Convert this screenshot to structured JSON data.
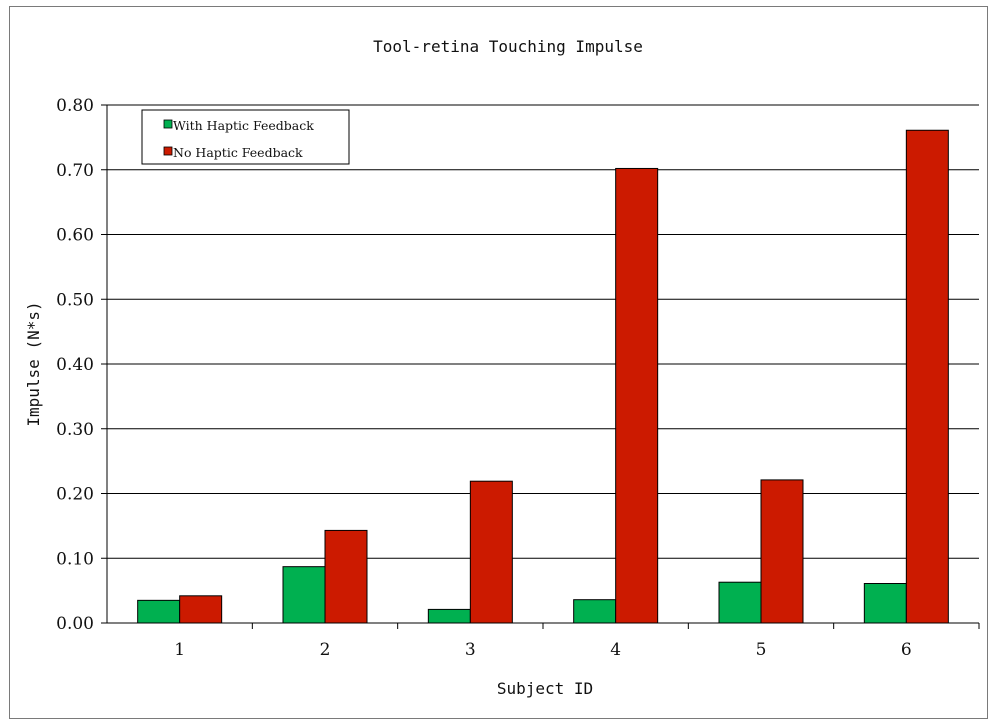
{
  "chart_data": {
    "type": "bar",
    "title": "Tool-retina Touching Impulse",
    "xlabel": "Subject ID",
    "ylabel": "Impulse (N*s)",
    "categories": [
      "1",
      "2",
      "3",
      "4",
      "5",
      "6"
    ],
    "series": [
      {
        "name": "With Haptic Feedback",
        "color": "#00b050",
        "values": [
          0.035,
          0.087,
          0.021,
          0.036,
          0.063,
          0.061
        ]
      },
      {
        "name": "No Haptic Feedback",
        "color": "#cc1a00",
        "values": [
          0.042,
          0.143,
          0.219,
          0.702,
          0.221,
          0.761
        ]
      }
    ],
    "ylim": [
      0,
      0.8
    ],
    "yticks": [
      "0.00",
      "0.10",
      "0.20",
      "0.30",
      "0.40",
      "0.50",
      "0.60",
      "0.70",
      "0.80"
    ],
    "grid": true,
    "legend_position": "top-left"
  }
}
